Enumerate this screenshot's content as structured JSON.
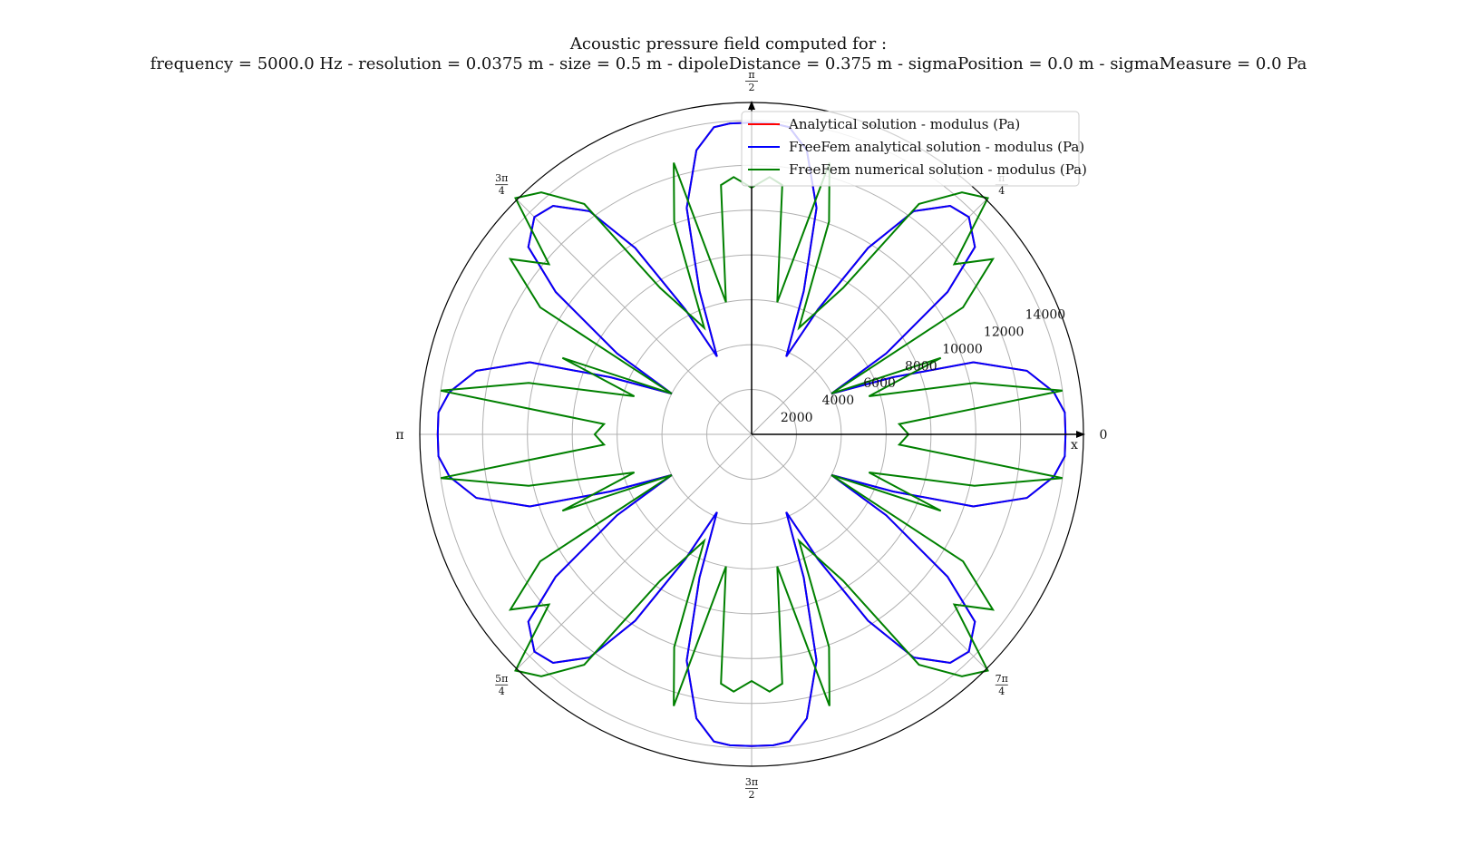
{
  "chart_data": {
    "type": "polar-line",
    "title": "Acoustic pressure field computed for :",
    "subtitle": "frequency = 5000.0 Hz - resolution = 0.0375 m - size = 0.5 m - dipoleDistance = 0.375 m - sigmaPosition = 0.0 m - sigmaMeasure = 0.0 Pa",
    "radial_ticks": [
      2000,
      4000,
      6000,
      8000,
      10000,
      12000,
      14000
    ],
    "rmax": 14800,
    "angular_labels": [
      {
        "num": "",
        "den": "",
        "text": "0"
      },
      {
        "num": "π",
        "den": "4",
        "text": ""
      },
      {
        "num": "π",
        "den": "2",
        "text": ""
      },
      {
        "num": "3π",
        "den": "4",
        "text": ""
      },
      {
        "num": "",
        "den": "",
        "text": "π"
      },
      {
        "num": "5π",
        "den": "4",
        "text": ""
      },
      {
        "num": "3π",
        "den": "2",
        "text": ""
      },
      {
        "num": "7π",
        "den": "4",
        "text": ""
      }
    ],
    "axis_label_x": "x",
    "grid": true,
    "legend_position": "upper-right",
    "series": [
      {
        "name": "Analytical solution - modulus (Pa)",
        "color": "#ff0000",
        "polar_deg_upper": [
          [
            0,
            14000
          ],
          [
            4,
            14000
          ],
          [
            8,
            13600
          ],
          [
            13,
            12600
          ],
          [
            18,
            10400
          ],
          [
            22,
            6800
          ],
          [
            27,
            4000
          ],
          [
            31,
            7000
          ],
          [
            36,
            10800
          ],
          [
            40,
            13000
          ],
          [
            45,
            13700
          ],
          [
            49,
            13500
          ],
          [
            54,
            12300
          ],
          [
            58,
            9800
          ],
          [
            62,
            6300
          ],
          [
            66,
            3800
          ],
          [
            70,
            6800
          ],
          [
            74,
            10500
          ],
          [
            79,
            12900
          ],
          [
            83,
            13800
          ],
          [
            86,
            13900
          ],
          [
            90,
            13900
          ]
        ]
      },
      {
        "name": "FreeFem analytical solution - modulus (Pa)",
        "color": "#0000ff",
        "polar_deg_upper": [
          [
            0,
            14000
          ],
          [
            4,
            14000
          ],
          [
            8,
            13600
          ],
          [
            13,
            12600
          ],
          [
            18,
            10400
          ],
          [
            22,
            6800
          ],
          [
            27,
            4000
          ],
          [
            31,
            7000
          ],
          [
            36,
            10800
          ],
          [
            40,
            13000
          ],
          [
            45,
            13700
          ],
          [
            49,
            13500
          ],
          [
            54,
            12300
          ],
          [
            58,
            9800
          ],
          [
            62,
            6300
          ],
          [
            66,
            3800
          ],
          [
            70,
            6800
          ],
          [
            74,
            10500
          ],
          [
            79,
            12900
          ],
          [
            83,
            13800
          ],
          [
            86,
            13900
          ],
          [
            90,
            13900
          ]
        ]
      },
      {
        "name": "FreeFem numerical solution - modulus (Pa)",
        "color": "#008000",
        "polar_deg_upper": [
          [
            0,
            7000
          ],
          [
            4,
            6600
          ],
          [
            8,
            14000
          ],
          [
            13,
            10200
          ],
          [
            18,
            5500
          ],
          [
            22,
            9100
          ],
          [
            27,
            4000
          ],
          [
            31,
            11000
          ],
          [
            36,
            13300
          ],
          [
            40,
            11800
          ],
          [
            45,
            14900
          ],
          [
            49,
            14300
          ],
          [
            54,
            12700
          ],
          [
            58,
            7700
          ],
          [
            62,
            6200
          ],
          [
            66,
            5200
          ],
          [
            70,
            10100
          ],
          [
            74,
            12600
          ],
          [
            79,
            6000
          ],
          [
            83,
            11200
          ],
          [
            86,
            11500
          ],
          [
            90,
            11000
          ]
        ]
      }
    ]
  }
}
